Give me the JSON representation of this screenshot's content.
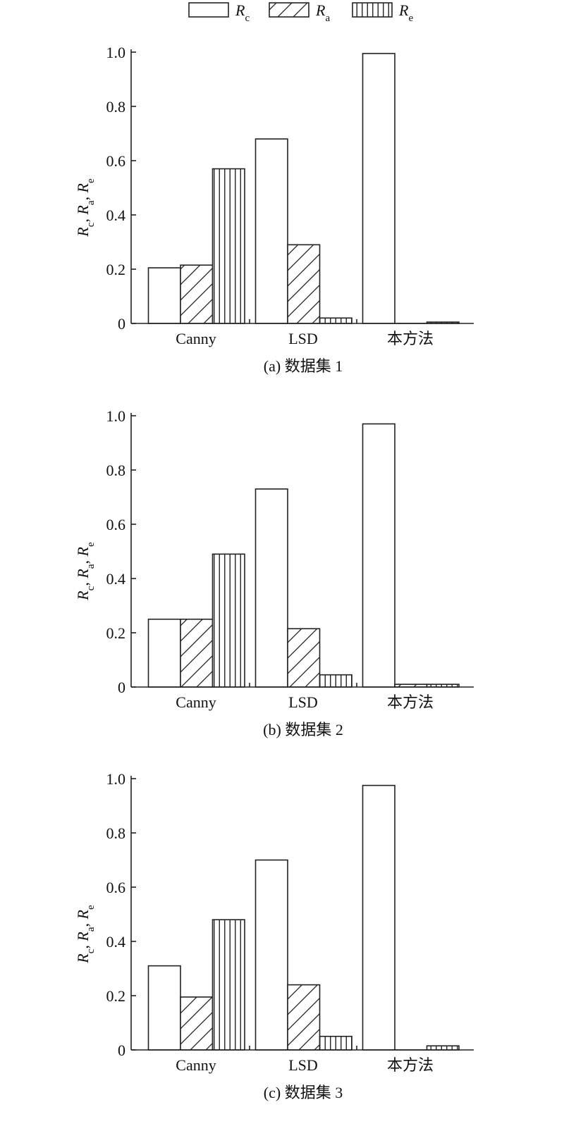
{
  "legend": {
    "items": [
      {
        "key": "Rc",
        "base": "R",
        "sub": "c",
        "pattern": "plain"
      },
      {
        "key": "Ra",
        "base": "R",
        "sub": "a",
        "pattern": "diagonal"
      },
      {
        "key": "Re",
        "base": "R",
        "sub": "e",
        "pattern": "vertical"
      }
    ]
  },
  "chart_data": [
    {
      "type": "bar",
      "caption": "(a) 数据集 1",
      "ylabel": {
        "parts": [
          {
            "base": "R",
            "sub": "c"
          },
          {
            "base": "R",
            "sub": "a"
          },
          {
            "base": "R",
            "sub": "e"
          }
        ],
        "separator": ", "
      },
      "categories": [
        "Canny",
        "LSD",
        "本方法"
      ],
      "ylim": [
        0,
        1.0
      ],
      "yticks": [
        "0",
        "0.2",
        "0.4",
        "0.6",
        "0.8",
        "1.0"
      ],
      "series": [
        {
          "key": "Rc",
          "pattern": "plain",
          "values": [
            0.205,
            0.68,
            0.995
          ]
        },
        {
          "key": "Ra",
          "pattern": "diagonal",
          "values": [
            0.215,
            0.29,
            0.0
          ]
        },
        {
          "key": "Re",
          "pattern": "vertical",
          "values": [
            0.57,
            0.02,
            0.005
          ]
        }
      ]
    },
    {
      "type": "bar",
      "caption": "(b) 数据集 2",
      "ylabel": {
        "parts": [
          {
            "base": "R",
            "sub": "c"
          },
          {
            "base": "R",
            "sub": "a"
          },
          {
            "base": "R",
            "sub": "e"
          }
        ],
        "separator": ", "
      },
      "categories": [
        "Canny",
        "LSD",
        "本方法"
      ],
      "ylim": [
        0,
        1.0
      ],
      "yticks": [
        "0",
        "0.2",
        "0.4",
        "0.6",
        "0.8",
        "1.0"
      ],
      "series": [
        {
          "key": "Rc",
          "pattern": "plain",
          "values": [
            0.25,
            0.73,
            0.97
          ]
        },
        {
          "key": "Ra",
          "pattern": "diagonal",
          "values": [
            0.25,
            0.215,
            0.01
          ]
        },
        {
          "key": "Re",
          "pattern": "vertical",
          "values": [
            0.49,
            0.045,
            0.01
          ]
        }
      ]
    },
    {
      "type": "bar",
      "caption": "(c) 数据集 3",
      "ylabel": {
        "parts": [
          {
            "base": "R",
            "sub": "c"
          },
          {
            "base": "R",
            "sub": "a"
          },
          {
            "base": "R",
            "sub": "e"
          }
        ],
        "separator": ", "
      },
      "categories": [
        "Canny",
        "LSD",
        "本方法"
      ],
      "ylim": [
        0,
        1.0
      ],
      "yticks": [
        "0",
        "0.2",
        "0.4",
        "0.6",
        "0.8",
        "1.0"
      ],
      "series": [
        {
          "key": "Rc",
          "pattern": "plain",
          "values": [
            0.31,
            0.7,
            0.975
          ]
        },
        {
          "key": "Ra",
          "pattern": "diagonal",
          "values": [
            0.195,
            0.24,
            0.0
          ]
        },
        {
          "key": "Re",
          "pattern": "vertical",
          "values": [
            0.48,
            0.05,
            0.015
          ]
        }
      ]
    }
  ]
}
